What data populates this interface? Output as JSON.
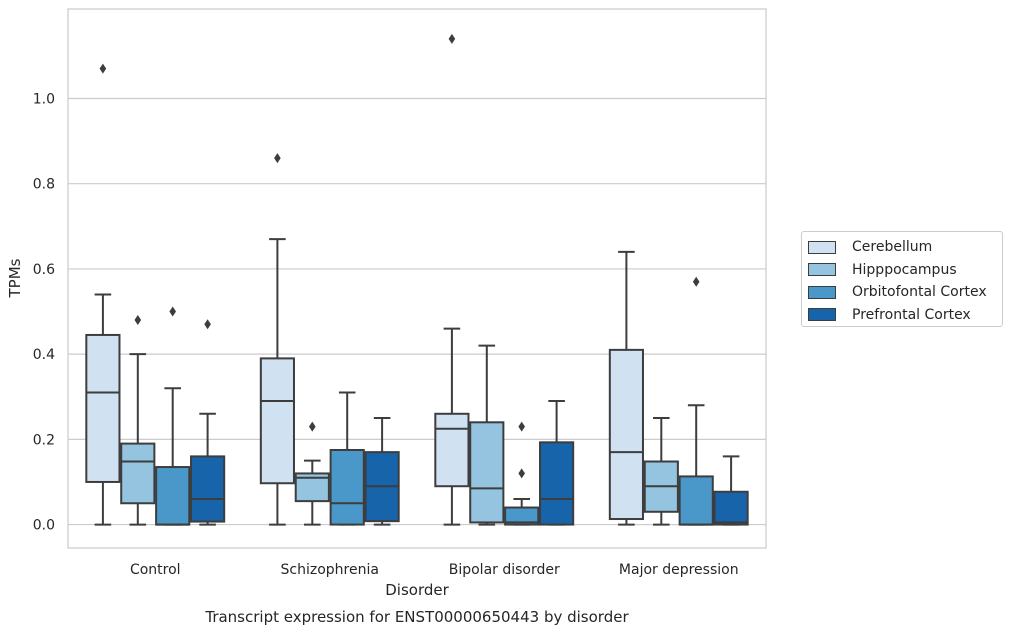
{
  "chart_data": {
    "type": "box",
    "title": "",
    "caption": "Transcript expression for ENST00000650443 by disorder",
    "xlabel": "Disorder",
    "ylabel": "TPMs",
    "ylim": [
      -0.055,
      1.21
    ],
    "yticks": [
      "0.0",
      "0.2",
      "0.4",
      "0.6",
      "0.8",
      "1.0"
    ],
    "ytick_values": [
      0.0,
      0.2,
      0.4,
      0.6,
      0.8,
      1.0
    ],
    "grid": true,
    "legend_position": "right",
    "categories": [
      "Control",
      "Schizophrenia",
      "Bipolar disorder",
      "Major depression"
    ],
    "series": [
      {
        "name": "Cerebellum",
        "color": "#d0e1f2",
        "boxes": [
          {
            "whislo": 0.0,
            "q1": 0.1,
            "med": 0.31,
            "q3": 0.445,
            "whishi": 0.54,
            "fliers": [
              1.07
            ]
          },
          {
            "whislo": 0.0,
            "q1": 0.097,
            "med": 0.29,
            "q3": 0.39,
            "whishi": 0.67,
            "fliers": [
              0.86
            ]
          },
          {
            "whislo": 0.0,
            "q1": 0.09,
            "med": 0.225,
            "q3": 0.26,
            "whishi": 0.46,
            "fliers": [
              1.14
            ]
          },
          {
            "whislo": 0.0,
            "q1": 0.013,
            "med": 0.17,
            "q3": 0.41,
            "whishi": 0.64,
            "fliers": []
          }
        ]
      },
      {
        "name": "Hipppocampus",
        "color": "#94c4df",
        "boxes": [
          {
            "whislo": 0.0,
            "q1": 0.05,
            "med": 0.148,
            "q3": 0.19,
            "whishi": 0.4,
            "fliers": [
              0.48
            ]
          },
          {
            "whislo": 0.0,
            "q1": 0.055,
            "med": 0.11,
            "q3": 0.12,
            "whishi": 0.15,
            "fliers": [
              0.23
            ]
          },
          {
            "whislo": 0.0,
            "q1": 0.005,
            "med": 0.085,
            "q3": 0.24,
            "whishi": 0.42,
            "fliers": []
          },
          {
            "whislo": 0.0,
            "q1": 0.03,
            "med": 0.09,
            "q3": 0.148,
            "whishi": 0.25,
            "fliers": []
          }
        ]
      },
      {
        "name": "Orbitofontal Cortex",
        "color": "#4a98c9",
        "boxes": [
          {
            "whislo": 0.0,
            "q1": 0.0,
            "med": 0.0,
            "q3": 0.135,
            "whishi": 0.32,
            "fliers": [
              0.5
            ]
          },
          {
            "whislo": 0.0,
            "q1": 0.0,
            "med": 0.05,
            "q3": 0.175,
            "whishi": 0.31,
            "fliers": []
          },
          {
            "whislo": 0.0,
            "q1": 0.0,
            "med": 0.005,
            "q3": 0.04,
            "whishi": 0.06,
            "fliers": [
              0.23,
              0.12
            ]
          },
          {
            "whislo": 0.0,
            "q1": 0.0,
            "med": 0.0,
            "q3": 0.113,
            "whishi": 0.28,
            "fliers": [
              0.57
            ]
          }
        ]
      },
      {
        "name": "Prefrontal Cortex",
        "color": "#1764ab",
        "boxes": [
          {
            "whislo": 0.0,
            "q1": 0.007,
            "med": 0.06,
            "q3": 0.16,
            "whishi": 0.26,
            "fliers": [
              0.47
            ]
          },
          {
            "whislo": 0.0,
            "q1": 0.008,
            "med": 0.09,
            "q3": 0.17,
            "whishi": 0.25,
            "fliers": []
          },
          {
            "whislo": 0.0,
            "q1": 0.0,
            "med": 0.06,
            "q3": 0.193,
            "whishi": 0.29,
            "fliers": []
          },
          {
            "whislo": 0.0,
            "q1": 0.0,
            "med": 0.005,
            "q3": 0.077,
            "whishi": 0.16,
            "fliers": []
          }
        ]
      }
    ]
  }
}
